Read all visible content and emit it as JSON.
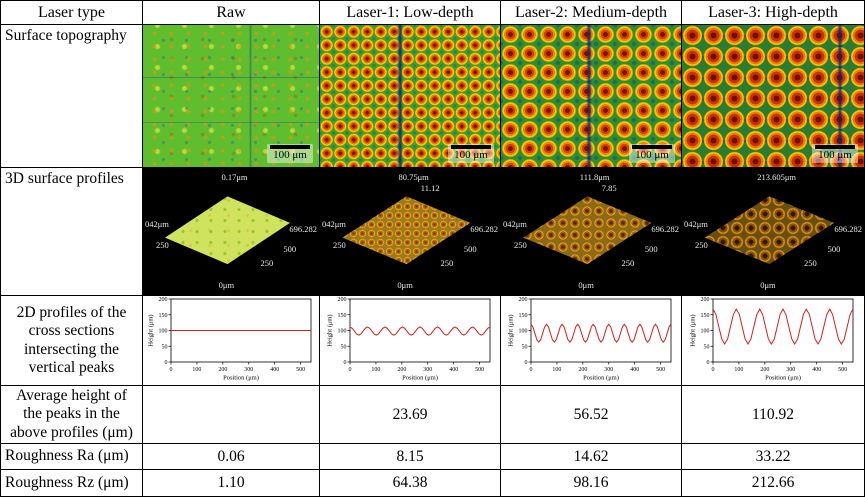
{
  "table": {
    "header": {
      "label": "Laser type",
      "columns": [
        "Raw",
        "Laser-1: Low-depth",
        "Laser-2: Medium-depth",
        "Laser-3: High-depth"
      ]
    },
    "row_labels": {
      "topography": "Surface topography",
      "profiles3d": "3D surface profiles",
      "profiles2d": "2D profiles of the cross sections intersecting the vertical peaks",
      "avg_height": "Average height of the peaks in the above profiles (μm)",
      "ra": "Roughness Ra (μm)",
      "rz": "Roughness Rz (μm)"
    },
    "avg_height": [
      "",
      "23.69",
      "56.52",
      "110.92"
    ],
    "ra": [
      "0.06",
      "8.15",
      "14.62",
      "33.22"
    ],
    "rz": [
      "1.10",
      "64.38",
      "98.16",
      "212.66"
    ]
  },
  "topography": {
    "scale_bar": "100 μm"
  },
  "profiles3d": {
    "panels": [
      {
        "peak": "0.17μm",
        "peak2": "",
        "z_left": "042μm",
        "left_tick": "250",
        "origin": "0μm",
        "right_tick1": "250",
        "right_tick2": "500",
        "right_max": "696.282"
      },
      {
        "peak": "80.75μm",
        "peak2": "11.12",
        "z_left": "042μm",
        "left_tick": "250",
        "origin": "0μm",
        "right_tick1": "250",
        "right_tick2": "500",
        "right_max": "696.282"
      },
      {
        "peak": "111.8μm",
        "peak2": "7.85",
        "z_left": "042μm",
        "left_tick": "250",
        "origin": "0μm",
        "right_tick1": "250",
        "right_tick2": "500",
        "right_max": "696.282"
      },
      {
        "peak": "213.605μm",
        "peak2": "",
        "z_left": "042μm",
        "left_tick": "250",
        "origin": "0μm",
        "right_tick1": "250",
        "right_tick2": "500",
        "right_max": "696.282"
      }
    ]
  },
  "chart_data": [
    {
      "type": "line",
      "title": "",
      "xlabel": "Position (μm)",
      "ylabel": "Height (μm)",
      "xlim": [
        0,
        540
      ],
      "ylim": [
        0,
        200
      ],
      "xticks": [
        0,
        100,
        200,
        300,
        400,
        500
      ],
      "yticks": [
        0,
        50,
        100,
        150,
        200
      ],
      "color": "#d42020",
      "x0": 0,
      "dx": 60,
      "y": [
        100,
        100,
        100,
        100,
        100,
        100,
        100,
        100,
        100,
        100
      ]
    },
    {
      "type": "line",
      "title": "",
      "xlabel": "Position (μm)",
      "ylabel": "Height (μm)",
      "xlim": [
        0,
        540
      ],
      "ylim": [
        0,
        200
      ],
      "xticks": [
        0,
        100,
        200,
        300,
        400,
        500
      ],
      "yticks": [
        0,
        50,
        100,
        150,
        200
      ],
      "color": "#d42020",
      "x0": 0,
      "dx": 8.4375,
      "y": [
        111,
        107,
        98,
        89,
        85,
        89,
        98,
        107,
        111,
        107,
        98,
        89,
        85,
        89,
        98,
        107,
        111,
        107,
        98,
        89,
        85,
        89,
        98,
        107,
        111,
        107,
        98,
        89,
        85,
        89,
        98,
        107,
        111,
        107,
        98,
        89,
        85,
        89,
        98,
        107,
        111,
        107,
        98,
        89,
        85,
        89,
        98,
        107,
        111,
        107,
        98,
        89,
        85,
        89,
        98,
        107,
        111,
        107,
        98,
        89,
        85,
        89,
        98,
        107,
        111
      ]
    },
    {
      "type": "line",
      "title": "",
      "xlabel": "Position (μm)",
      "ylabel": "Height (μm)",
      "xlim": [
        0,
        540
      ],
      "ylim": [
        0,
        200
      ],
      "xticks": [
        0,
        100,
        200,
        300,
        400,
        500
      ],
      "yticks": [
        0,
        50,
        100,
        150,
        200
      ],
      "color": "#d42020",
      "x0": 0,
      "dx": 7.5,
      "y": [
        120,
        111,
        91,
        71,
        63,
        71,
        91,
        111,
        120,
        111,
        91,
        71,
        63,
        71,
        91,
        111,
        120,
        111,
        91,
        71,
        63,
        71,
        91,
        111,
        120,
        111,
        91,
        71,
        63,
        71,
        91,
        111,
        120,
        111,
        91,
        71,
        63,
        71,
        91,
        111,
        120,
        111,
        91,
        71,
        63,
        71,
        91,
        111,
        120,
        111,
        91,
        71,
        63,
        71,
        91,
        111,
        120,
        111,
        91,
        71,
        63,
        71,
        91,
        111,
        120,
        111,
        91,
        71,
        63,
        71,
        91,
        111,
        120
      ]
    },
    {
      "type": "line",
      "title": "",
      "xlabel": "Position (μm)",
      "ylabel": "Height (μm)",
      "xlim": [
        0,
        540
      ],
      "ylim": [
        0,
        200
      ],
      "xticks": [
        0,
        100,
        200,
        300,
        400,
        500
      ],
      "yticks": [
        0,
        50,
        100,
        150,
        200
      ],
      "color": "#d42020",
      "x0": 0,
      "dx": 11.25,
      "y": [
        168,
        151,
        112,
        73,
        57,
        73,
        112,
        151,
        168,
        151,
        112,
        73,
        57,
        73,
        112,
        151,
        168,
        151,
        112,
        73,
        57,
        73,
        112,
        151,
        168,
        151,
        112,
        73,
        57,
        73,
        112,
        151,
        168,
        151,
        112,
        73,
        57,
        73,
        112,
        151,
        168,
        151,
        112,
        73,
        57,
        73,
        112,
        151,
        168
      ]
    }
  ]
}
